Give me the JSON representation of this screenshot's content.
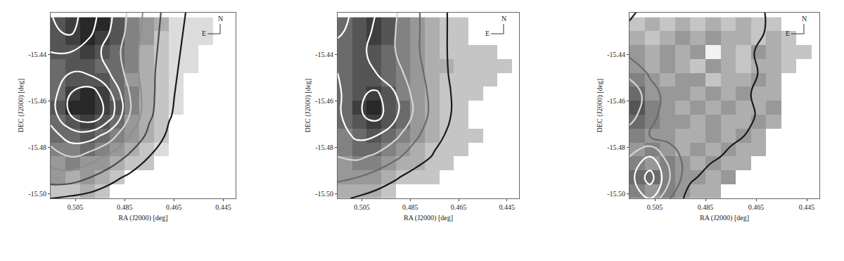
{
  "chart_data": [
    {
      "type": "heatmap",
      "x_label": "RA (J2000) [deg]",
      "y_label": "DEC (J2000) [deg]",
      "xlim": [
        0.515,
        0.44
      ],
      "ylim": [
        -15.502,
        -15.422
      ],
      "xticks": [
        0.505,
        0.485,
        0.465,
        0.445
      ],
      "yticks": [
        -15.44,
        -15.46,
        -15.48,
        {
          "value": -15.5,
          "label": "-15.50"
        }
      ],
      "annotations": [
        "N",
        "E"
      ],
      "x": [
        0.512,
        0.506,
        0.5,
        0.494,
        0.488,
        0.482,
        0.476,
        0.47,
        0.464,
        0.458,
        0.452,
        0.446
      ],
      "y": [
        -15.499,
        -15.493,
        -15.487,
        -15.481,
        -15.475,
        -15.469,
        -15.463,
        -15.457,
        -15.451,
        -15.445,
        -15.439,
        -15.433,
        -15.427
      ],
      "cells_range": [
        0,
        10
      ],
      "cells": [
        [
          2,
          2,
          3,
          2,
          null,
          null,
          null,
          null,
          null,
          null,
          null,
          null
        ],
        [
          4,
          3,
          4,
          3,
          2,
          null,
          null,
          null,
          null,
          null,
          null,
          null
        ],
        [
          4,
          5,
          4,
          4,
          3,
          2,
          2,
          null,
          null,
          null,
          null,
          null
        ],
        [
          5,
          5,
          6,
          5,
          4,
          3,
          2,
          1,
          null,
          null,
          null,
          null
        ],
        [
          6,
          6,
          7,
          6,
          5,
          4,
          3,
          2,
          null,
          null,
          null,
          null
        ],
        [
          6,
          7,
          8,
          7,
          6,
          4,
          3,
          2,
          null,
          null,
          null,
          null
        ],
        [
          7,
          9,
          9,
          8,
          7,
          5,
          3,
          2,
          1,
          null,
          null,
          null
        ],
        [
          6,
          8,
          9,
          8,
          6,
          5,
          3,
          2,
          1,
          null,
          null,
          null
        ],
        [
          6,
          7,
          7,
          7,
          6,
          4,
          3,
          2,
          1,
          null,
          null,
          null
        ],
        [
          6,
          7,
          7,
          6,
          6,
          5,
          3,
          2,
          1,
          1,
          null,
          null
        ],
        [
          7,
          7,
          8,
          7,
          6,
          5,
          3,
          2,
          1,
          1,
          null,
          null
        ],
        [
          7,
          8,
          9,
          8,
          7,
          5,
          4,
          2,
          1,
          1,
          1,
          null
        ],
        [
          7,
          8,
          9,
          9,
          7,
          5,
          4,
          3,
          1,
          1,
          1,
          null
        ]
      ],
      "contour": {
        "x": [
          0.515,
          0.507,
          0.499,
          0.491,
          0.483,
          0.475,
          0.467,
          0.459,
          0.451,
          0.443
        ],
        "y": [
          -15.502,
          -15.493,
          -15.484,
          -15.475,
          -15.466,
          -15.457,
          -15.448,
          -15.439,
          -15.43,
          -15.421
        ],
        "levels": [
          1,
          2,
          3,
          4,
          5,
          6,
          7
        ],
        "z": [
          [
            1.0,
            0.8,
            0.6,
            0.4,
            0.2,
            0,
            0,
            0,
            0,
            0
          ],
          [
            2.5,
            2.5,
            2.0,
            1.3,
            0.8,
            0.4,
            0.1,
            0,
            0,
            0
          ],
          [
            3.5,
            4.0,
            3.5,
            2.8,
            1.8,
            1.0,
            0.5,
            0.1,
            0,
            0
          ],
          [
            4.5,
            5.5,
            5.5,
            4.5,
            3.0,
            1.7,
            0.8,
            0.3,
            0,
            0
          ],
          [
            5.5,
            7.0,
            7.8,
            6.5,
            4.0,
            2.2,
            1.1,
            0.4,
            0.1,
            0
          ],
          [
            5.5,
            7.0,
            7.6,
            6.2,
            4.0,
            2.3,
            1.2,
            0.5,
            0.1,
            0
          ],
          [
            5.5,
            6.0,
            5.8,
            5.0,
            3.6,
            2.3,
            1.3,
            0.6,
            0.2,
            0
          ],
          [
            6.0,
            6.0,
            5.5,
            4.6,
            3.5,
            2.4,
            1.4,
            0.7,
            0.2,
            0
          ],
          [
            6.8,
            7.2,
            6.2,
            5.0,
            3.7,
            2.5,
            1.5,
            0.8,
            0.3,
            0
          ],
          [
            7.0,
            7.4,
            6.5,
            5.2,
            3.8,
            2.6,
            1.6,
            0.9,
            0.3,
            0
          ]
        ]
      }
    },
    {
      "type": "heatmap",
      "x_label": "RA (J2000) [deg]",
      "y_label": "DEC (J2000) [deg]",
      "xlim": [
        0.515,
        0.44
      ],
      "ylim": [
        -15.502,
        -15.422
      ],
      "xticks": [
        0.505,
        0.485,
        0.465,
        0.445
      ],
      "yticks": [
        -15.44,
        -15.46,
        -15.48,
        {
          "value": -15.5,
          "label": "-15.50"
        }
      ],
      "annotations": [
        "N",
        "E"
      ],
      "x": [
        0.512,
        0.506,
        0.5,
        0.494,
        0.488,
        0.482,
        0.476,
        0.47,
        0.464,
        0.458,
        0.452,
        0.446
      ],
      "y": [
        -15.499,
        -15.493,
        -15.487,
        -15.481,
        -15.475,
        -15.469,
        -15.463,
        -15.457,
        -15.451,
        -15.445,
        -15.439,
        -15.433,
        -15.427
      ],
      "cells_range": [
        0,
        10
      ],
      "cells": [
        [
          3,
          3,
          3,
          2,
          null,
          null,
          null,
          null,
          null,
          null,
          null,
          null
        ],
        [
          4,
          4,
          4,
          3,
          2,
          2,
          2,
          null,
          null,
          null,
          null,
          null
        ],
        [
          4,
          5,
          5,
          4,
          3,
          3,
          2,
          2,
          null,
          null,
          null,
          null
        ],
        [
          5,
          6,
          6,
          5,
          4,
          3,
          2,
          2,
          2,
          null,
          null,
          null
        ],
        [
          5,
          6,
          7,
          6,
          5,
          4,
          3,
          2,
          2,
          2,
          null,
          null
        ],
        [
          6,
          7,
          8,
          7,
          6,
          4,
          3,
          2,
          2,
          null,
          null,
          null
        ],
        [
          6,
          8,
          9,
          7,
          6,
          4,
          3,
          2,
          2,
          null,
          null,
          null
        ],
        [
          6,
          7,
          8,
          7,
          5,
          4,
          3,
          2,
          2,
          2,
          null,
          null
        ],
        [
          6,
          7,
          7,
          6,
          5,
          4,
          3,
          2,
          2,
          2,
          2,
          null
        ],
        [
          6,
          7,
          7,
          6,
          5,
          4,
          3,
          3,
          2,
          2,
          2,
          2
        ],
        [
          6,
          7,
          7,
          6,
          5,
          4,
          3,
          2,
          2,
          2,
          2,
          null
        ],
        [
          6,
          7,
          8,
          7,
          5,
          4,
          3,
          2,
          2,
          null,
          null,
          null
        ],
        [
          6,
          7,
          8,
          7,
          5,
          4,
          3,
          2,
          2,
          null,
          null,
          null
        ]
      ],
      "contour": {
        "x": [
          0.515,
          0.507,
          0.499,
          0.491,
          0.483,
          0.475,
          0.467,
          0.459,
          0.451,
          0.443
        ],
        "y": [
          -15.502,
          -15.493,
          -15.484,
          -15.475,
          -15.466,
          -15.457,
          -15.448,
          -15.439,
          -15.43,
          -15.421
        ],
        "levels": [
          1,
          2,
          3,
          4,
          5
        ],
        "z": [
          [
            1.2,
            0.9,
            0.6,
            0.3,
            0.1,
            0,
            0,
            0,
            0,
            0
          ],
          [
            2.2,
            2.0,
            1.6,
            1.1,
            0.6,
            0.3,
            0.1,
            0,
            0,
            0
          ],
          [
            3.0,
            3.2,
            2.8,
            2.2,
            1.5,
            0.9,
            0.4,
            0.1,
            0,
            0
          ],
          [
            3.5,
            4.2,
            4.0,
            3.2,
            2.2,
            1.3,
            0.7,
            0.2,
            0,
            0
          ],
          [
            3.8,
            4.8,
            5.4,
            4.2,
            2.8,
            1.6,
            0.9,
            0.3,
            0,
            0
          ],
          [
            3.8,
            4.8,
            5.2,
            4.0,
            2.7,
            1.6,
            0.9,
            0.3,
            0,
            0
          ],
          [
            4.0,
            4.2,
            4.0,
            3.4,
            2.4,
            1.5,
            0.8,
            0.3,
            0,
            0
          ],
          [
            4.6,
            4.2,
            3.8,
            3.0,
            2.2,
            1.4,
            0.8,
            0.3,
            0,
            0
          ],
          [
            5.2,
            4.6,
            3.8,
            3.0,
            2.2,
            1.4,
            0.8,
            0.3,
            0,
            0
          ],
          [
            5.4,
            4.8,
            4.0,
            3.1,
            2.2,
            1.4,
            0.8,
            0.3,
            0,
            0
          ]
        ]
      }
    },
    {
      "type": "heatmap",
      "x_label": "RA (J2000) [deg]",
      "y_label": "DEC (J2000) [deg]",
      "xlim": [
        0.515,
        0.44
      ],
      "ylim": [
        -15.502,
        -15.422
      ],
      "xticks": [
        0.505,
        0.485,
        0.465,
        0.445
      ],
      "yticks": [
        -15.44,
        -15.46,
        -15.48,
        {
          "value": -15.5,
          "label": "-15.50"
        }
      ],
      "annotations": [
        "N",
        "E"
      ],
      "x": [
        0.512,
        0.506,
        0.5,
        0.494,
        0.488,
        0.482,
        0.476,
        0.47,
        0.464,
        0.458,
        0.452,
        0.446
      ],
      "y": [
        -15.499,
        -15.493,
        -15.487,
        -15.481,
        -15.475,
        -15.469,
        -15.463,
        -15.457,
        -15.451,
        -15.445,
        -15.439,
        -15.433,
        -15.427
      ],
      "cells_range": [
        0,
        10
      ],
      "cells": [
        [
          5,
          4,
          5,
          4,
          3,
          3,
          null,
          null,
          null,
          null,
          null,
          null
        ],
        [
          6,
          6,
          5,
          4,
          4,
          3,
          4,
          null,
          null,
          null,
          null,
          null
        ],
        [
          5,
          4,
          5,
          4,
          3,
          4,
          3,
          3,
          null,
          null,
          null,
          null
        ],
        [
          4,
          5,
          4,
          3,
          4,
          3,
          4,
          3,
          3,
          null,
          null,
          null
        ],
        [
          5,
          4,
          4,
          3,
          3,
          4,
          3,
          4,
          3,
          null,
          null,
          null
        ],
        [
          6,
          5,
          4,
          4,
          3,
          4,
          3,
          3,
          4,
          3,
          null,
          null
        ],
        [
          7,
          5,
          4,
          3,
          4,
          3,
          4,
          3,
          3,
          4,
          null,
          null
        ],
        [
          6,
          4,
          4,
          4,
          3,
          4,
          3,
          4,
          3,
          3,
          null,
          null
        ],
        [
          5,
          4,
          3,
          4,
          4,
          2,
          3,
          3,
          4,
          3,
          null,
          null
        ],
        [
          4,
          3,
          4,
          3,
          2,
          4,
          3,
          2,
          3,
          3,
          2,
          null
        ],
        [
          4,
          3,
          4,
          3,
          4,
          0,
          3,
          2,
          4,
          3,
          2,
          2
        ],
        [
          3,
          2,
          3,
          4,
          3,
          4,
          3,
          3,
          2,
          3,
          2,
          null
        ],
        [
          2,
          3,
          2,
          3,
          2,
          3,
          2,
          3,
          2,
          2,
          null,
          null
        ]
      ],
      "contour": {
        "x": [
          0.515,
          0.507,
          0.499,
          0.491,
          0.483,
          0.475,
          0.467,
          0.459,
          0.451,
          0.443
        ],
        "y": [
          -15.502,
          -15.493,
          -15.484,
          -15.475,
          -15.466,
          -15.457,
          -15.448,
          -15.439,
          -15.43,
          -15.421
        ],
        "levels": [
          1,
          2,
          3,
          4,
          5
        ],
        "z": [
          [
            3.0,
            4.0,
            2.0,
            0.5,
            0,
            0,
            0,
            0,
            0,
            0
          ],
          [
            3.5,
            5.5,
            3.0,
            1.2,
            0.6,
            0.2,
            0,
            0,
            0,
            0
          ],
          [
            3.0,
            4.0,
            2.5,
            1.5,
            1.2,
            0.8,
            0.3,
            0,
            0,
            0
          ],
          [
            2.5,
            2.0,
            1.7,
            1.5,
            1.4,
            1.2,
            0.9,
            0.4,
            0,
            0
          ],
          [
            3.5,
            2.2,
            1.7,
            1.5,
            1.4,
            1.3,
            1.1,
            0.6,
            0.1,
            0
          ],
          [
            4.0,
            2.3,
            1.7,
            1.5,
            1.4,
            1.3,
            1.0,
            0.4,
            0,
            0
          ],
          [
            2.6,
            1.9,
            1.6,
            1.5,
            1.4,
            1.3,
            1.1,
            0.8,
            0.4,
            0
          ],
          [
            1.8,
            1.6,
            1.5,
            1.4,
            1.4,
            1.3,
            1.1,
            0.5,
            0,
            0
          ],
          [
            1.2,
            1.4,
            1.5,
            1.4,
            1.4,
            1.3,
            1.2,
            0.9,
            0.5,
            0
          ],
          [
            0.8,
            1.3,
            1.4,
            1.4,
            1.4,
            1.3,
            1.2,
            0.9,
            0.6,
            0.1
          ]
        ]
      }
    }
  ]
}
